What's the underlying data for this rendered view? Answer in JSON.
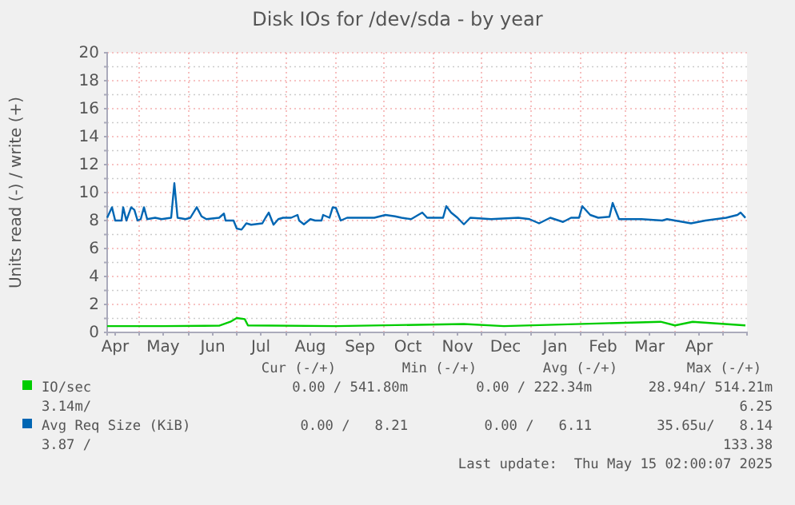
{
  "chart_data": {
    "type": "line",
    "title": "Disk IOs for /dev/sda - by year",
    "ylabel": "Units read (-) / write (+)",
    "xlim": [
      "2024-04-11",
      "2025-05-16"
    ],
    "xticks": [
      {
        "value": "2024-05-01",
        "label": null
      },
      {
        "value": "2024-06-01",
        "label": null
      },
      {
        "value": "2024-07-01",
        "label": null
      },
      {
        "value": "2024-08-01",
        "label": null
      },
      {
        "value": "2024-09-01",
        "label": null
      },
      {
        "value": "2024-10-01",
        "label": null
      },
      {
        "value": "2024-11-01",
        "label": null
      },
      {
        "value": "2024-12-01",
        "label": null
      },
      {
        "value": "2025-01-01",
        "label": null
      },
      {
        "value": "2025-02-01",
        "label": null
      },
      {
        "value": "2025-03-01",
        "label": null
      },
      {
        "value": "2025-04-01",
        "label": null
      },
      {
        "value": "2025-05-01",
        "label": null
      },
      {
        "value": "2024-04-16",
        "label": "Apr"
      },
      {
        "value": "2024-05-16",
        "label": "May"
      },
      {
        "value": "2024-06-16",
        "label": "Jun"
      },
      {
        "value": "2024-07-16",
        "label": "Jul"
      },
      {
        "value": "2024-08-16",
        "label": "Aug"
      },
      {
        "value": "2024-09-16",
        "label": "Sep"
      },
      {
        "value": "2024-10-16",
        "label": "Oct"
      },
      {
        "value": "2024-11-16",
        "label": "Nov"
      },
      {
        "value": "2024-12-16",
        "label": "Dec"
      },
      {
        "value": "2025-01-16",
        "label": "Jan"
      },
      {
        "value": "2025-02-15",
        "label": "Feb"
      },
      {
        "value": "2025-03-16",
        "label": "Mar"
      },
      {
        "value": "2025-04-16",
        "label": "Apr"
      }
    ],
    "ylim": [
      0,
      20
    ],
    "yticks": [
      0,
      {
        "value": 1,
        "label": null
      },
      2,
      {
        "value": 3,
        "label": null
      },
      4,
      {
        "value": 5,
        "label": null
      },
      6,
      {
        "value": 7,
        "label": null
      },
      8,
      {
        "value": 9,
        "label": null
      },
      10,
      {
        "value": 11,
        "label": null
      },
      12,
      {
        "value": 13,
        "label": null
      },
      14,
      {
        "value": 15,
        "label": null
      },
      16,
      {
        "value": 17,
        "label": null
      },
      18,
      {
        "value": 19,
        "label": null
      },
      20
    ],
    "grid": true,
    "legend": "bottom",
    "series": [
      {
        "name": "IO/sec",
        "color": "#00cc00",
        "x": [
          "2024-04-11",
          "2024-05-15",
          "2024-06-20",
          "2024-06-27",
          "2024-07-01",
          "2024-07-06",
          "2024-07-08",
          "2024-09-01",
          "2024-11-20",
          "2024-12-15",
          "2025-03-23",
          "2025-04-01",
          "2025-04-12",
          "2025-05-15"
        ],
        "values": [
          0.45,
          0.45,
          0.48,
          0.76,
          1.03,
          0.95,
          0.5,
          0.45,
          0.6,
          0.45,
          0.76,
          0.5,
          0.76,
          0.5
        ]
      },
      {
        "name": "Avg Req Size (KiB)",
        "color": "#0066b3",
        "x": [
          "2024-04-11",
          "2024-04-14",
          "2024-04-16",
          "2024-04-20",
          "2024-04-21",
          "2024-04-23",
          "2024-04-26",
          "2024-04-28",
          "2024-04-30",
          "2024-05-02",
          "2024-05-04",
          "2024-05-06",
          "2024-05-11",
          "2024-05-15",
          "2024-05-21",
          "2024-05-23",
          "2024-05-25",
          "2024-05-30",
          "2024-06-02",
          "2024-06-06",
          "2024-06-09",
          "2024-06-12",
          "2024-06-20",
          "2024-06-23",
          "2024-06-24",
          "2024-06-29",
          "2024-07-01",
          "2024-07-04",
          "2024-07-07",
          "2024-07-10",
          "2024-07-17",
          "2024-07-19",
          "2024-07-21",
          "2024-07-24",
          "2024-07-27",
          "2024-07-30",
          "2024-08-04",
          "2024-08-08",
          "2024-08-09",
          "2024-08-12",
          "2024-08-16",
          "2024-08-19",
          "2024-08-23",
          "2024-08-24",
          "2024-08-28",
          "2024-08-30",
          "2024-09-01",
          "2024-09-04",
          "2024-09-08",
          "2024-09-15",
          "2024-09-25",
          "2024-10-02",
          "2024-10-08",
          "2024-10-12",
          "2024-10-18",
          "2024-10-25",
          "2024-10-28",
          "2024-11-07",
          "2024-11-09",
          "2024-11-12",
          "2024-11-16",
          "2024-11-20",
          "2024-11-24",
          "2024-12-07",
          "2024-12-24",
          "2024-12-31",
          "2025-01-06",
          "2025-01-13",
          "2025-01-21",
          "2025-01-26",
          "2025-01-31",
          "2025-02-02",
          "2025-02-07",
          "2025-02-12",
          "2025-02-19",
          "2025-02-21",
          "2025-02-25",
          "2025-03-11",
          "2025-03-24",
          "2025-03-27",
          "2025-04-11",
          "2025-04-20",
          "2025-05-03",
          "2025-05-10",
          "2025-05-12",
          "2025-05-15"
        ],
        "values": [
          8.2,
          8.95,
          8.0,
          8.0,
          8.95,
          8.0,
          8.95,
          8.76,
          8.0,
          8.1,
          8.95,
          8.1,
          8.2,
          8.1,
          8.2,
          10.67,
          8.2,
          8.1,
          8.2,
          8.95,
          8.3,
          8.1,
          8.2,
          8.5,
          8.0,
          8.0,
          7.43,
          7.35,
          7.8,
          7.7,
          7.8,
          8.2,
          8.57,
          7.7,
          8.1,
          8.2,
          8.2,
          8.4,
          8.0,
          7.73,
          8.1,
          8.0,
          8.0,
          8.4,
          8.2,
          8.95,
          8.9,
          8.0,
          8.2,
          8.2,
          8.2,
          8.4,
          8.3,
          8.2,
          8.1,
          8.57,
          8.2,
          8.2,
          9.03,
          8.57,
          8.2,
          7.73,
          8.2,
          8.1,
          8.2,
          8.1,
          7.8,
          8.2,
          7.9,
          8.2,
          8.2,
          9.03,
          8.4,
          8.2,
          8.27,
          9.26,
          8.1,
          8.1,
          8.0,
          8.1,
          7.8,
          8.0,
          8.2,
          8.4,
          8.57,
          8.19
        ]
      }
    ],
    "annotations": [
      "Cur (-/+)",
      "Min (-/+)",
      "Avg (-/+)",
      "Max (-/+)",
      "0.00 / 541.80m",
      "0.00 / 222.34m",
      "28.94n/ 514.21m",
      "3.14m/",
      "6.25",
      "0.00 /   8.21",
      "0.00 /   6.11",
      "35.65u/   8.14",
      "3.87 /",
      "133.38",
      "Last update:  Thu May 15 02:00:07 2025"
    ]
  }
}
